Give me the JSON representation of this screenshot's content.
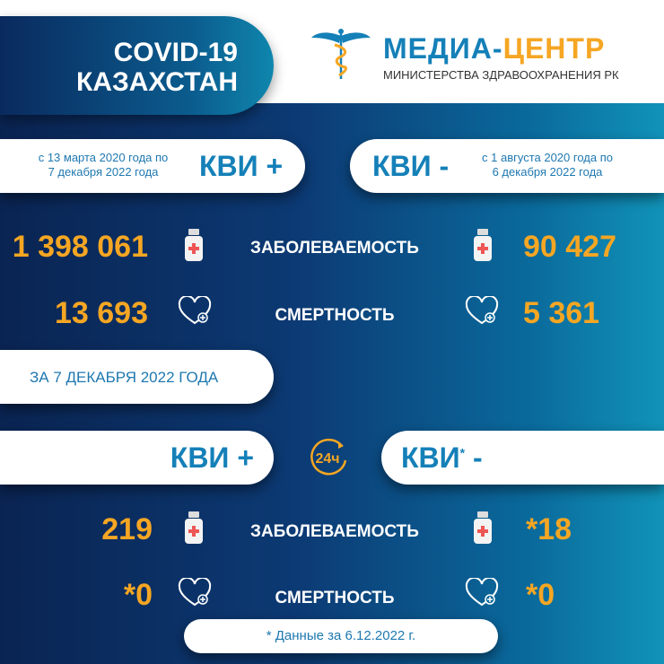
{
  "header": {
    "title_line1": "COVID-19",
    "title_line2": "КАЗАХСТАН",
    "logo_name_part1": "МЕДИА-",
    "logo_name_part2": "ЦЕНТР",
    "logo_subtitle": "МИНИСТЕРСТВА ЗДРАВООХРАНЕНИЯ РК"
  },
  "cumulative": {
    "positive": {
      "label": "КВИ +",
      "period_line1": "с 13 марта 2020 года по",
      "period_line2": "7 декабря 2022 года",
      "cases": "1 398 061",
      "deaths": "13 693"
    },
    "negative": {
      "label": "КВИ -",
      "period_line1": "с 1 августа 2020 года по",
      "period_line2": "6 декабря 2022 года",
      "cases": "90 427",
      "deaths": "5 361"
    },
    "cases_label": "ЗАБОЛЕВАЕМОСТЬ",
    "deaths_label": "СМЕРТНОСТЬ"
  },
  "daily": {
    "date_label": "ЗА 7 ДЕКАБРЯ 2022 ГОДА",
    "badge": "24ч",
    "positive": {
      "label": "КВИ +",
      "cases": "219",
      "deaths": "*0"
    },
    "negative": {
      "label": "КВИ",
      "asterisk": "*",
      "suffix": " -",
      "cases": "*18",
      "deaths": "*0"
    },
    "cases_label": "ЗАБОЛЕВАЕМОСТЬ",
    "deaths_label": "СМЕРТНОСТЬ"
  },
  "footnote": "* Данные за 6.12.2022 г.",
  "colors": {
    "accent_orange": "#f5a623",
    "blue": "#1580b8",
    "navy": "#0a2452",
    "teal": "#1193b8"
  },
  "icons": [
    "caduceus-icon",
    "medicine-bottle-icon",
    "heart-plus-icon",
    "24h-clock-icon"
  ]
}
